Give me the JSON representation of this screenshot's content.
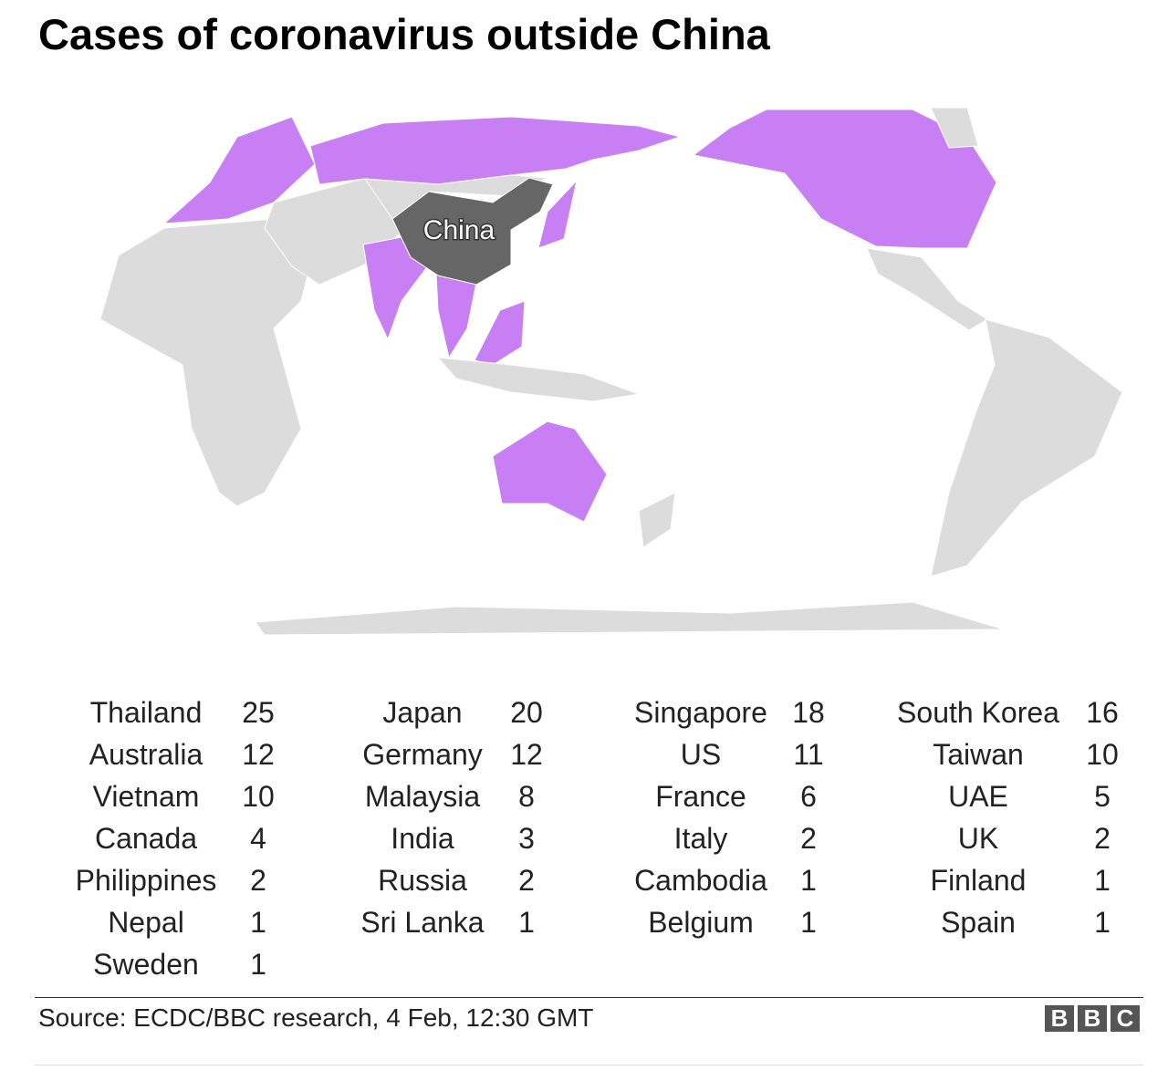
{
  "header": {
    "title": "Cases of coronavirus outside China"
  },
  "map": {
    "label": "China"
  },
  "table": {
    "columns": [
      [
        {
          "country": "Thailand",
          "cases": 25
        },
        {
          "country": "Australia",
          "cases": 12
        },
        {
          "country": "Vietnam",
          "cases": 10
        },
        {
          "country": "Canada",
          "cases": 4
        },
        {
          "country": "Philippines",
          "cases": 2
        },
        {
          "country": "Nepal",
          "cases": 1
        },
        {
          "country": "Sweden",
          "cases": 1
        }
      ],
      [
        {
          "country": "Japan",
          "cases": 20
        },
        {
          "country": "Germany",
          "cases": 12
        },
        {
          "country": "Malaysia",
          "cases": 8
        },
        {
          "country": "India",
          "cases": 3
        },
        {
          "country": "Russia",
          "cases": 2
        },
        {
          "country": "Sri Lanka",
          "cases": 1
        }
      ],
      [
        {
          "country": "Singapore",
          "cases": 18
        },
        {
          "country": "US",
          "cases": 11
        },
        {
          "country": "France",
          "cases": 6
        },
        {
          "country": "Italy",
          "cases": 2
        },
        {
          "country": "Cambodia",
          "cases": 1
        },
        {
          "country": "Belgium",
          "cases": 1
        }
      ],
      [
        {
          "country": "South Korea",
          "cases": 16
        },
        {
          "country": "Taiwan",
          "cases": 10
        },
        {
          "country": "UAE",
          "cases": 5
        },
        {
          "country": "UK",
          "cases": 2
        },
        {
          "country": "Finland",
          "cases": 1
        },
        {
          "country": "Spain",
          "cases": 1
        }
      ]
    ]
  },
  "footer": {
    "source": "Source: ECDC/BBC research, 4 Feb, 12:30 GMT",
    "logo": [
      "B",
      "B",
      "C"
    ]
  }
}
